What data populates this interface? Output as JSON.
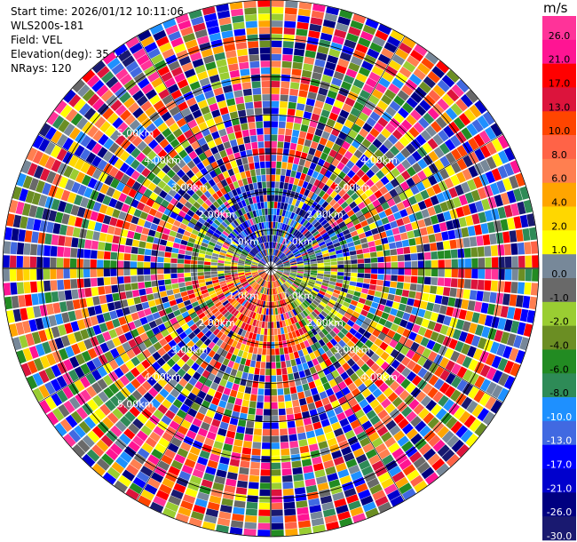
{
  "header": {
    "start_time": "Start time: 2026/01/12 10:11:06",
    "site": "WLS200s-181",
    "field": "Field: VEL",
    "elevation": "Elevation(deg): 35.00",
    "nrays": "NRays: 120"
  },
  "chart_data": {
    "type": "heatmap",
    "projection": "polar-ppi",
    "field": "VEL",
    "units": "m/s",
    "elevation_deg": 35.0,
    "n_rays": 120,
    "range_rings": [
      {
        "label": "1.0km"
      },
      {
        "label": "2.00km"
      },
      {
        "label": "3.00km"
      },
      {
        "label": "4.00km"
      },
      {
        "label": "5.00km"
      }
    ],
    "ring_label_quadrants": [
      [
        1,
        1,
        1,
        1,
        1
      ],
      [
        1,
        1,
        1,
        1,
        0
      ],
      [
        1,
        1,
        1,
        1,
        0
      ],
      [
        1,
        1,
        1,
        1,
        1
      ]
    ],
    "colorbar": {
      "unit": "m/s",
      "ticks": [
        "26.0",
        "21.0",
        "17.0",
        "13.0",
        "10.0",
        "8.0",
        "6.0",
        "4.0",
        "2.0",
        "1.0",
        "0.0",
        "-1.0",
        "-2.0",
        "-4.0",
        "-6.0",
        "-8.0",
        "-10.0",
        "-13.0",
        "-17.0",
        "-21.0",
        "-26.0",
        "-30.0"
      ],
      "colors": [
        "#ff3399",
        "#ff1493",
        "#ff0000",
        "#dc143c",
        "#ff4500",
        "#ff6347",
        "#ff7f50",
        "#ffa500",
        "#ffd700",
        "#ffff00",
        "#778899",
        "#696969",
        "#9acd32",
        "#6b8e23",
        "#228b22",
        "#2e8b57",
        "#1e90ff",
        "#4169e1",
        "#0000ff",
        "#0000cd",
        "#000080",
        "#191970"
      ]
    },
    "velocity_pattern": {
      "near_field_negative_quadrants": [
        "north",
        "northeast"
      ],
      "near_field_positive_quadrants": [
        "south",
        "southwest"
      ],
      "far_field": "noise"
    }
  }
}
